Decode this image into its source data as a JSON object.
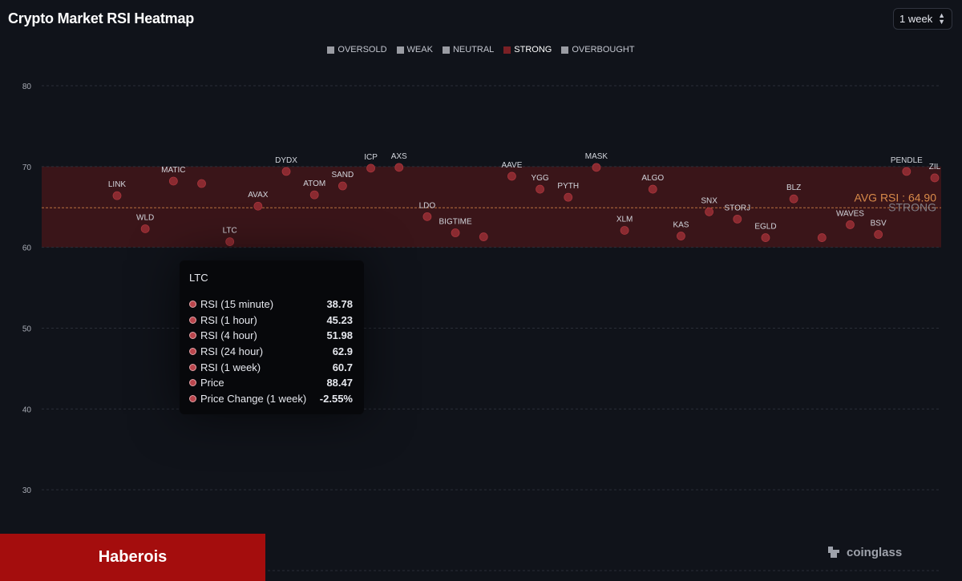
{
  "title": "Crypto Market RSI Heatmap",
  "period_selector": {
    "value": "1 week"
  },
  "legend": [
    {
      "label": "OVERSOLD",
      "color": "#9a9ca3",
      "active": false
    },
    {
      "label": "WEAK",
      "color": "#9a9ca3",
      "active": false
    },
    {
      "label": "NEUTRAL",
      "color": "#9a9ca3",
      "active": false
    },
    {
      "label": "STRONG",
      "color": "#7a2025",
      "active": true
    },
    {
      "label": "OVERBOUGHT",
      "color": "#9a9ca3",
      "active": false
    }
  ],
  "chart_data": {
    "type": "scatter",
    "title": "Crypto Market RSI Heatmap",
    "ylabel": "",
    "ylim": [
      20,
      80
    ],
    "y_ticks": [
      80,
      70,
      60,
      50,
      40,
      30,
      20
    ],
    "grid": true,
    "legend_position": "top-center",
    "band": {
      "label": "STRONG",
      "from": 60,
      "to": 70,
      "color": "#3a1519"
    },
    "average_line": {
      "label": "AVG RSI : 64.90",
      "value": 64.9,
      "color": "#d98a4a"
    },
    "point_color": "#8a2a30",
    "points": [
      {
        "name": "LINK",
        "x": 1,
        "y": 66.4
      },
      {
        "name": "WLD",
        "x": 2,
        "y": 62.3
      },
      {
        "name": "MATIC",
        "x": 3,
        "y": 68.2
      },
      {
        "name": "",
        "x": 4,
        "y": 67.9
      },
      {
        "name": "LTC",
        "x": 5,
        "y": 60.7
      },
      {
        "name": "AVAX",
        "x": 6,
        "y": 65.1
      },
      {
        "name": "DYDX",
        "x": 7,
        "y": 69.4
      },
      {
        "name": "ATOM",
        "x": 8,
        "y": 66.5
      },
      {
        "name": "SAND",
        "x": 9,
        "y": 67.6
      },
      {
        "name": "ICP",
        "x": 10,
        "y": 69.8
      },
      {
        "name": "AXS",
        "x": 11,
        "y": 69.9
      },
      {
        "name": "LDO",
        "x": 12,
        "y": 63.8
      },
      {
        "name": "BIGTIME",
        "x": 13,
        "y": 61.8
      },
      {
        "name": "",
        "x": 14,
        "y": 61.3
      },
      {
        "name": "AAVE",
        "x": 15,
        "y": 68.8
      },
      {
        "name": "YGG",
        "x": 16,
        "y": 67.2
      },
      {
        "name": "PYTH",
        "x": 17,
        "y": 66.2
      },
      {
        "name": "MASK",
        "x": 18,
        "y": 69.9
      },
      {
        "name": "XLM",
        "x": 19,
        "y": 62.1
      },
      {
        "name": "ALGO",
        "x": 20,
        "y": 67.2
      },
      {
        "name": "KAS",
        "x": 21,
        "y": 61.4
      },
      {
        "name": "SNX",
        "x": 22,
        "y": 64.4
      },
      {
        "name": "STORJ",
        "x": 23,
        "y": 63.5
      },
      {
        "name": "EGLD",
        "x": 24,
        "y": 61.2
      },
      {
        "name": "BLZ",
        "x": 25,
        "y": 66.0
      },
      {
        "name": "",
        "x": 26,
        "y": 61.2
      },
      {
        "name": "WAVES",
        "x": 27,
        "y": 62.8
      },
      {
        "name": "BSV",
        "x": 28,
        "y": 61.6
      },
      {
        "name": "PENDLE",
        "x": 29,
        "y": 69.4
      },
      {
        "name": "ZIL",
        "x": 30,
        "y": 68.6
      }
    ]
  },
  "tooltip": {
    "title": "LTC",
    "rows": [
      {
        "label": "RSI (15 minute)",
        "value": "38.78"
      },
      {
        "label": "RSI (1 hour)",
        "value": "45.23"
      },
      {
        "label": "RSI (4 hour)",
        "value": "51.98"
      },
      {
        "label": "RSI (24 hour)",
        "value": "62.9"
      },
      {
        "label": "RSI (1 week)",
        "value": "60.7"
      },
      {
        "label": "Price",
        "value": "88.47"
      },
      {
        "label": "Price Change (1 week)",
        "value": "-2.55%"
      }
    ]
  },
  "watermark": "coinglass",
  "banner": "Haberois"
}
